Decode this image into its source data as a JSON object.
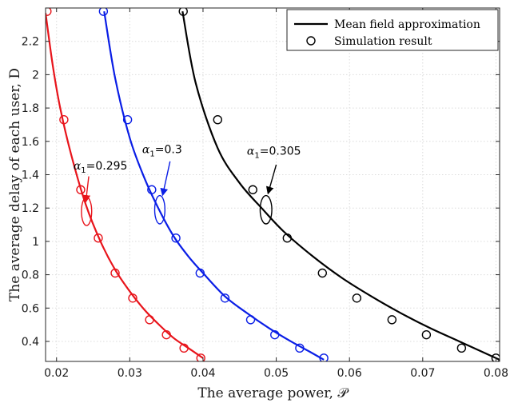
{
  "chart_data": {
    "type": "line",
    "xlabel": "The average power, 𝒫",
    "ylabel": "The average delay of each user, D",
    "xlim": [
      0.0185,
      0.0805
    ],
    "ylim": [
      0.28,
      2.4
    ],
    "xticks": [
      0.02,
      0.03,
      0.04,
      0.05,
      0.06,
      0.07,
      0.08
    ],
    "yticks": [
      0.4,
      0.6,
      0.8,
      1,
      1.2,
      1.4,
      1.6,
      1.8,
      2,
      2.2
    ],
    "xtick_labels": [
      "0.02",
      "0.03",
      "0.04",
      "0.05",
      "0.06",
      "0.07",
      "0.08"
    ],
    "ytick_labels": [
      "0.4",
      "0.6",
      "0.8",
      "1",
      "1.2",
      "1.4",
      "1.6",
      "1.8",
      "2",
      "2.2"
    ],
    "grid": true,
    "legend": {
      "position": "top-right",
      "entries": [
        "Mean field approximation",
        "Simulation result"
      ]
    },
    "series": [
      {
        "color": "#e8141b",
        "curve_x": [
          0.0185,
          0.0195,
          0.0205,
          0.022,
          0.024,
          0.026,
          0.028,
          0.03,
          0.032,
          0.034,
          0.036,
          0.038,
          0.04
        ],
        "curve_y": [
          2.37,
          2.05,
          1.8,
          1.52,
          1.22,
          1.0,
          0.83,
          0.7,
          0.59,
          0.5,
          0.42,
          0.36,
          0.3
        ],
        "sim_x": [
          0.0187,
          0.021,
          0.0233,
          0.0257,
          0.028,
          0.0304,
          0.0327,
          0.035,
          0.0374,
          0.0397
        ],
        "sim_y": [
          2.38,
          1.73,
          1.31,
          1.02,
          0.81,
          0.66,
          0.53,
          0.44,
          0.36,
          0.3
        ]
      },
      {
        "color": "#0a1ee6",
        "curve_x": [
          0.0265,
          0.028,
          0.03,
          0.032,
          0.034,
          0.036,
          0.038,
          0.04,
          0.043,
          0.046,
          0.049,
          0.052,
          0.0545,
          0.0565
        ],
        "curve_y": [
          2.38,
          1.98,
          1.62,
          1.38,
          1.19,
          1.03,
          0.91,
          0.81,
          0.67,
          0.57,
          0.48,
          0.4,
          0.34,
          0.29
        ],
        "sim_x": [
          0.0264,
          0.0297,
          0.033,
          0.0363,
          0.0396,
          0.043,
          0.0465,
          0.0498,
          0.0532,
          0.0565
        ],
        "sim_y": [
          2.38,
          1.73,
          1.31,
          1.02,
          0.81,
          0.66,
          0.53,
          0.44,
          0.36,
          0.3
        ]
      },
      {
        "color": "#000000",
        "curve_x": [
          0.0372,
          0.039,
          0.042,
          0.045,
          0.048,
          0.051,
          0.055,
          0.059,
          0.063,
          0.067,
          0.071,
          0.075,
          0.078,
          0.0805
        ],
        "curve_y": [
          2.38,
          1.95,
          1.56,
          1.35,
          1.2,
          1.06,
          0.91,
          0.78,
          0.67,
          0.57,
          0.48,
          0.4,
          0.34,
          0.29
        ],
        "sim_x": [
          0.0373,
          0.042,
          0.0468,
          0.0515,
          0.0563,
          0.061,
          0.0658,
          0.0705,
          0.0753,
          0.08
        ],
        "sim_y": [
          2.38,
          1.73,
          1.31,
          1.02,
          0.81,
          0.66,
          0.53,
          0.44,
          0.36,
          0.3
        ]
      }
    ],
    "annotations": [
      {
        "alpha": "α",
        "subscript": "1",
        "value": "=0.295",
        "color": "#e8141b",
        "label_xy": [
          0.0223,
          1.43
        ],
        "arrow_from": [
          0.0244,
          1.39
        ],
        "arrow_to": [
          0.024,
          1.24
        ],
        "ellipse_center": [
          0.0241,
          1.18
        ],
        "ellipse_radius": [
          0.0007,
          0.085
        ]
      },
      {
        "alpha": "α",
        "subscript": "1",
        "value": "=0.3",
        "color": "#0a1ee6",
        "label_xy": [
          0.0317,
          1.53
        ],
        "arrow_from": [
          0.0355,
          1.48
        ],
        "arrow_to": [
          0.0345,
          1.28
        ],
        "ellipse_center": [
          0.0341,
          1.19
        ],
        "ellipse_radius": [
          0.0007,
          0.085
        ]
      },
      {
        "alpha": "α",
        "subscript": "1",
        "value": "=0.305",
        "color": "#000000",
        "label_xy": [
          0.046,
          1.52
        ],
        "arrow_from": [
          0.05,
          1.46
        ],
        "arrow_to": [
          0.0489,
          1.29
        ],
        "ellipse_center": [
          0.0486,
          1.19
        ],
        "ellipse_radius": [
          0.0008,
          0.085
        ]
      }
    ]
  }
}
